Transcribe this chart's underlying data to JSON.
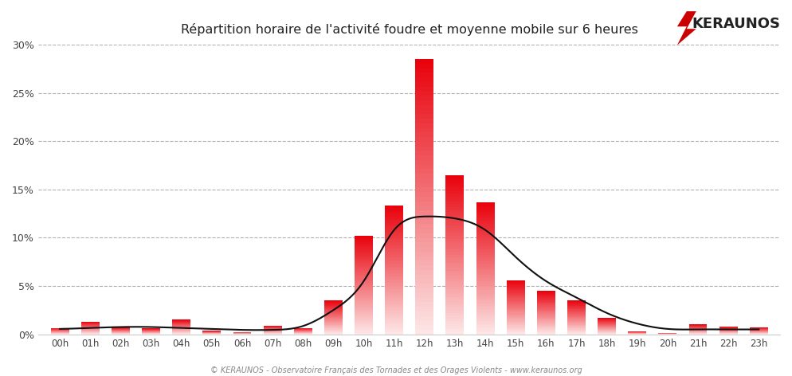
{
  "title": "Répartition horaire de l'activité foudre et moyenne mobile sur 6 heures",
  "hours": [
    "00h",
    "01h",
    "02h",
    "03h",
    "04h",
    "05h",
    "06h",
    "07h",
    "08h",
    "09h",
    "10h",
    "11h",
    "12h",
    "13h",
    "14h",
    "15h",
    "16h",
    "17h",
    "18h",
    "19h",
    "20h",
    "21h",
    "22h",
    "23h"
  ],
  "values": [
    0.65,
    1.3,
    0.7,
    0.6,
    1.5,
    0.35,
    0.25,
    0.9,
    0.65,
    3.5,
    10.2,
    13.3,
    28.5,
    16.5,
    13.7,
    5.6,
    4.5,
    3.5,
    1.7,
    0.3,
    0.15,
    1.0,
    0.8,
    0.7
  ],
  "moving_avg": [
    0.55,
    0.65,
    0.75,
    0.75,
    0.65,
    0.55,
    0.45,
    0.45,
    0.85,
    2.5,
    5.5,
    10.8,
    12.2,
    12.0,
    10.8,
    8.0,
    5.5,
    3.8,
    2.2,
    1.1,
    0.55,
    0.5,
    0.5,
    0.5
  ],
  "ylim": [
    0,
    30
  ],
  "yticks": [
    0,
    5,
    10,
    15,
    20,
    25,
    30
  ],
  "ytick_labels": [
    "0%",
    "5%",
    "10%",
    "15%",
    "20%",
    "25%",
    "30%"
  ],
  "bar_top_color": "#e8000a",
  "bar_bottom_color": "#fde8e8",
  "line_color": "#111111",
  "bg_color": "#ffffff",
  "plot_bg_color": "#ffffff",
  "grid_color": "#b0b0b0",
  "footer": "© KERAUNOS - Observatoire Français des Tornades et des Orages Violents - www.keraunos.org",
  "logo_text": "KERAUNOS",
  "logo_color": "#222222",
  "logo_bolt_color": "#cc0000",
  "bar_width": 0.6
}
